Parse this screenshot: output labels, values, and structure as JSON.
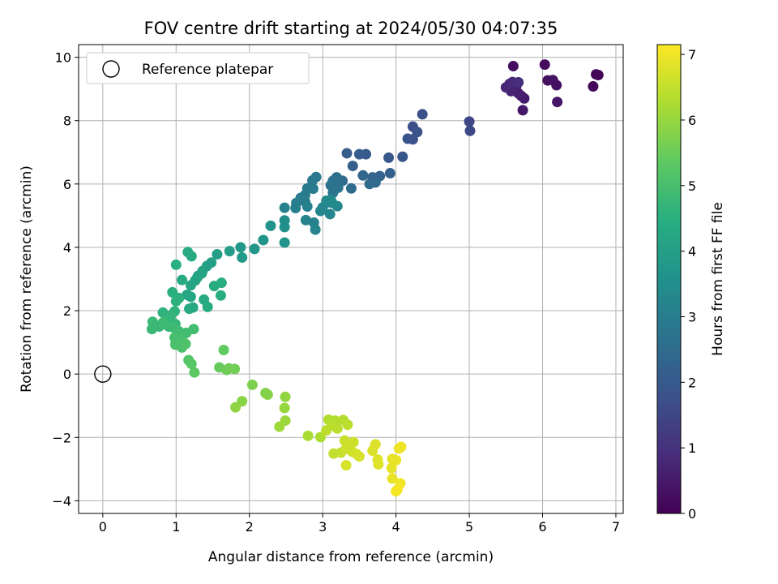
{
  "chart_data": {
    "type": "scatter",
    "title": "FOV centre drift starting at 2024/05/30 04:07:35",
    "xlabel": "Angular distance from reference (arcmin)",
    "ylabel": "Rotation from reference (arcmin)",
    "xlim": [
      -0.33,
      7.1
    ],
    "ylim": [
      -4.4,
      10.4
    ],
    "xticks": [
      0,
      1,
      2,
      3,
      4,
      5,
      6,
      7
    ],
    "yticks": [
      -4,
      -2,
      0,
      2,
      4,
      6,
      8,
      10
    ],
    "grid": true,
    "legend": {
      "position": "top-left",
      "entries": [
        "Reference platepar"
      ]
    },
    "colorbar": {
      "label": "Hours from first FF file",
      "range": [
        0,
        7.15
      ],
      "ticks": [
        0,
        1,
        2,
        3,
        4,
        5,
        6,
        7
      ],
      "colormap": "viridis"
    },
    "reference_point": {
      "x": 0,
      "y": 0,
      "label": "Reference platepar"
    },
    "points": [
      [
        6.73,
        9.46,
        0.08
      ],
      [
        6.76,
        9.44,
        0.1
      ],
      [
        6.69,
        9.08,
        0.12
      ],
      [
        6.03,
        9.77,
        0.2
      ],
      [
        5.6,
        9.72,
        0.25
      ],
      [
        6.07,
        9.27,
        0.3
      ],
      [
        6.14,
        9.28,
        0.32
      ],
      [
        6.19,
        9.12,
        0.35
      ],
      [
        6.2,
        8.59,
        0.38
      ],
      [
        5.73,
        8.33,
        0.45
      ],
      [
        5.75,
        8.7,
        0.5
      ],
      [
        5.71,
        8.78,
        0.55
      ],
      [
        5.67,
        8.86,
        0.6
      ],
      [
        5.64,
        9.08,
        0.65
      ],
      [
        5.57,
        8.93,
        0.7
      ],
      [
        5.55,
        9.16,
        0.75
      ],
      [
        5.5,
        9.05,
        0.8
      ],
      [
        5.59,
        9.22,
        0.85
      ],
      [
        5.67,
        9.21,
        0.9
      ],
      [
        5.0,
        7.97,
        1.5
      ],
      [
        5.01,
        7.68,
        1.55
      ],
      [
        4.36,
        8.2,
        1.7
      ],
      [
        4.23,
        7.81,
        1.75
      ],
      [
        4.29,
        7.64,
        1.78
      ],
      [
        4.23,
        7.41,
        1.8
      ],
      [
        4.16,
        7.43,
        1.85
      ],
      [
        4.09,
        6.86,
        1.9
      ],
      [
        3.9,
        6.83,
        1.95
      ],
      [
        3.59,
        6.94,
        2.0
      ],
      [
        3.5,
        6.94,
        2.05
      ],
      [
        3.33,
        6.97,
        2.1
      ],
      [
        3.41,
        6.57,
        2.15
      ],
      [
        3.92,
        6.34,
        2.2
      ],
      [
        3.78,
        6.25,
        2.25
      ],
      [
        3.68,
        6.21,
        2.3
      ],
      [
        3.55,
        6.27,
        2.35
      ],
      [
        3.72,
        6.05,
        2.4
      ],
      [
        3.64,
        6.0,
        2.45
      ],
      [
        3.39,
        5.86,
        2.5
      ],
      [
        3.27,
        6.1,
        2.55
      ],
      [
        3.19,
        6.21,
        2.6
      ],
      [
        3.14,
        6.1,
        2.65
      ],
      [
        3.11,
        5.96,
        2.7
      ],
      [
        3.21,
        5.88,
        2.72
      ],
      [
        3.14,
        5.72,
        2.75
      ],
      [
        3.06,
        5.42,
        2.8
      ],
      [
        2.91,
        6.22,
        2.85
      ],
      [
        2.86,
        6.11,
        2.88
      ],
      [
        2.87,
        5.85,
        2.9
      ],
      [
        2.79,
        5.86,
        2.92
      ],
      [
        2.76,
        5.65,
        2.95
      ],
      [
        2.7,
        5.56,
        2.98
      ],
      [
        2.76,
        5.44,
        3.0
      ],
      [
        2.64,
        5.4,
        3.02
      ],
      [
        2.63,
        5.24,
        3.05
      ],
      [
        2.79,
        5.29,
        3.08
      ],
      [
        2.48,
        5.25,
        3.1
      ],
      [
        2.77,
        4.86,
        3.15
      ],
      [
        2.88,
        4.78,
        3.18
      ],
      [
        2.9,
        4.56,
        3.2
      ],
      [
        2.97,
        5.15,
        3.22
      ],
      [
        3.0,
        5.26,
        3.25
      ],
      [
        3.1,
        5.05,
        3.28
      ],
      [
        3.2,
        5.3,
        3.3
      ],
      [
        3.05,
        5.47,
        3.32
      ],
      [
        3.13,
        5.4,
        3.35
      ],
      [
        3.11,
        5.5,
        3.38
      ],
      [
        2.48,
        4.85,
        3.5
      ],
      [
        2.48,
        4.64,
        3.55
      ],
      [
        2.29,
        4.68,
        3.6
      ],
      [
        2.48,
        4.15,
        3.65
      ],
      [
        2.19,
        4.23,
        3.7
      ],
      [
        2.07,
        3.95,
        3.75
      ],
      [
        1.88,
        4.0,
        3.8
      ],
      [
        1.9,
        3.68,
        3.85
      ],
      [
        1.73,
        3.88,
        3.9
      ],
      [
        1.56,
        3.78,
        3.95
      ],
      [
        1.48,
        3.52,
        4.0
      ],
      [
        1.42,
        3.41,
        4.05
      ],
      [
        1.36,
        3.25,
        4.1
      ],
      [
        1.3,
        3.1,
        4.1
      ],
      [
        1.26,
        2.95,
        4.15
      ],
      [
        1.2,
        2.8,
        4.2
      ],
      [
        1.15,
        2.5,
        4.2
      ],
      [
        1.2,
        2.44,
        4.25
      ],
      [
        1.08,
        2.97,
        4.3
      ],
      [
        1.23,
        2.1,
        4.3
      ],
      [
        1.18,
        2.06,
        4.35
      ],
      [
        1.38,
        2.35,
        4.35
      ],
      [
        1.43,
        2.12,
        4.4
      ],
      [
        1.52,
        2.78,
        4.4
      ],
      [
        1.62,
        2.88,
        4.45
      ],
      [
        1.61,
        2.48,
        4.45
      ],
      [
        1.0,
        3.45,
        4.5
      ],
      [
        0.95,
        2.58,
        4.5
      ],
      [
        1.04,
        2.4,
        4.55
      ],
      [
        1.0,
        2.3,
        4.55
      ],
      [
        1.16,
        3.85,
        4.3
      ],
      [
        1.21,
        3.72,
        4.3
      ],
      [
        1.29,
        3.05,
        4.2
      ],
      [
        1.35,
        3.18,
        4.15
      ],
      [
        0.82,
        1.94,
        4.6
      ],
      [
        0.98,
        1.98,
        4.6
      ],
      [
        0.93,
        1.85,
        4.65
      ],
      [
        0.88,
        1.7,
        4.7
      ],
      [
        0.99,
        1.58,
        4.7
      ],
      [
        0.9,
        1.5,
        4.75
      ],
      [
        0.77,
        1.5,
        4.75
      ],
      [
        0.67,
        1.42,
        4.8
      ],
      [
        0.68,
        1.65,
        4.8
      ],
      [
        0.82,
        1.62,
        4.85
      ],
      [
        0.96,
        1.47,
        4.85
      ],
      [
        1.04,
        1.35,
        4.9
      ],
      [
        1.1,
        1.25,
        4.9
      ],
      [
        1.24,
        1.42,
        4.95
      ],
      [
        1.14,
        1.3,
        4.95
      ],
      [
        0.98,
        1.15,
        5.0
      ],
      [
        1.05,
        1.1,
        5.0
      ],
      [
        0.99,
        0.93,
        5.05
      ],
      [
        1.08,
        0.84,
        5.05
      ],
      [
        1.13,
        0.95,
        5.1
      ],
      [
        1.17,
        0.44,
        5.2
      ],
      [
        1.21,
        0.32,
        5.25
      ],
      [
        1.25,
        0.05,
        5.3
      ],
      [
        1.65,
        0.76,
        5.4
      ],
      [
        1.59,
        0.21,
        5.45
      ],
      [
        1.69,
        0.13,
        5.5
      ],
      [
        1.72,
        0.18,
        5.55
      ],
      [
        1.8,
        0.16,
        5.6
      ],
      [
        2.04,
        -0.34,
        5.7
      ],
      [
        2.22,
        -0.6,
        5.75
      ],
      [
        2.25,
        -0.65,
        5.8
      ],
      [
        1.9,
        -0.86,
        5.85
      ],
      [
        1.81,
        -1.05,
        5.9
      ],
      [
        2.49,
        -0.72,
        5.95
      ],
      [
        2.48,
        -1.07,
        6.0
      ],
      [
        2.49,
        -1.47,
        6.05
      ],
      [
        2.41,
        -1.66,
        6.1
      ],
      [
        2.8,
        -1.95,
        6.2
      ],
      [
        2.97,
        -1.99,
        6.25
      ],
      [
        3.08,
        -1.44,
        6.3
      ],
      [
        3.17,
        -1.47,
        6.32
      ],
      [
        3.28,
        -1.45,
        6.35
      ],
      [
        3.12,
        -1.62,
        6.38
      ],
      [
        3.2,
        -1.72,
        6.4
      ],
      [
        3.34,
        -1.6,
        6.42
      ],
      [
        3.05,
        -1.78,
        6.45
      ],
      [
        3.15,
        -2.51,
        6.5
      ],
      [
        3.25,
        -2.48,
        6.52
      ],
      [
        3.3,
        -2.1,
        6.55
      ],
      [
        3.38,
        -2.22,
        6.58
      ],
      [
        3.42,
        -2.15,
        6.6
      ],
      [
        3.32,
        -2.35,
        6.62
      ],
      [
        3.4,
        -2.45,
        6.65
      ],
      [
        3.46,
        -2.52,
        6.68
      ],
      [
        3.5,
        -2.6,
        6.7
      ],
      [
        3.32,
        -2.88,
        6.72
      ],
      [
        3.68,
        -2.42,
        6.75
      ],
      [
        3.72,
        -2.22,
        6.78
      ],
      [
        3.75,
        -2.7,
        6.8
      ],
      [
        3.76,
        -2.85,
        6.82
      ],
      [
        3.95,
        -2.68,
        6.85
      ],
      [
        3.94,
        -2.97,
        6.88
      ],
      [
        3.95,
        -3.3,
        6.9
      ],
      [
        4.0,
        -2.72,
        6.92
      ],
      [
        4.04,
        -2.35,
        6.95
      ],
      [
        4.07,
        -2.3,
        6.98
      ],
      [
        4.06,
        -3.45,
        7.02
      ],
      [
        4.02,
        -3.65,
        7.05
      ],
      [
        4.0,
        -3.7,
        7.08
      ]
    ]
  }
}
